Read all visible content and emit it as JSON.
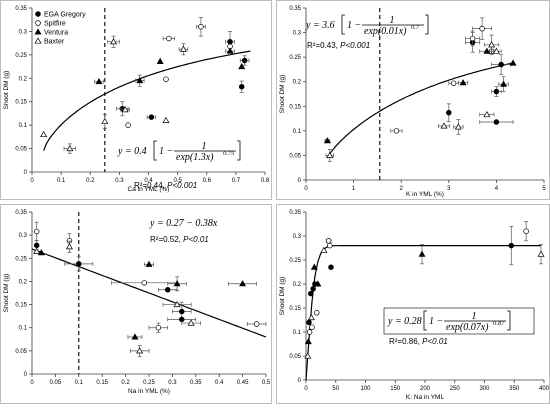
{
  "legend": [
    {
      "name": "EGA Gregory",
      "marker": "circle",
      "fill": "#000000"
    },
    {
      "name": "Spitfire",
      "marker": "circle",
      "fill": "#ffffff"
    },
    {
      "name": "Ventura",
      "marker": "triangle",
      "fill": "#000000"
    },
    {
      "name": "Baxter",
      "marker": "triangle",
      "fill": "#ffffff"
    }
  ],
  "chart_data": [
    {
      "type": "scatter",
      "xlabel": "Ca in YML (%)",
      "ylabel": "Shoot DM (g)",
      "xlim": [
        0,
        0.8
      ],
      "ylim": [
        0,
        0.35
      ],
      "xticks": [
        "0",
        "0.1",
        "0.2",
        "0.3",
        "0.4",
        "0.5",
        "0.6",
        "0.7",
        "0.8"
      ],
      "yticks": [
        "0",
        "0.05",
        "0.1",
        "0.15",
        "0.2",
        "0.25",
        "0.3",
        "0.35"
      ],
      "reference_x": 0.25,
      "fit": {
        "model": "sigmoid",
        "a": 0.4,
        "b": 1.3,
        "c": 0.75,
        "x_range": [
          0.04,
          0.75
        ]
      },
      "equation": {
        "lhs": "y = 0.4",
        "num": "1",
        "den": "exp(1.3x)",
        "exp": "0.75"
      },
      "r2_label": "R²=0.44, ",
      "p_label": "P<0.001",
      "series": [
        {
          "name": "EGA Gregory",
          "points": [
            [
              0.31,
              0.135,
              0.02,
              0.015
            ],
            [
              0.41,
              0.117,
              0.015,
              0
            ],
            [
              0.68,
              0.278,
              0.015,
              0.022
            ],
            [
              0.72,
              0.182,
              0,
              0.012
            ],
            [
              0.73,
              0.238,
              0.015,
              0.01
            ]
          ]
        },
        {
          "name": "Spitfire",
          "points": [
            [
              0.33,
              0.1,
              0,
              0
            ],
            [
              0.46,
              0.198,
              0,
              0
            ],
            [
              0.47,
              0.285,
              0.02,
              0
            ],
            [
              0.58,
              0.31,
              0.015,
              0.02
            ],
            [
              0.68,
              0.268,
              0,
              0
            ]
          ]
        },
        {
          "name": "Ventura",
          "points": [
            [
              0.23,
              0.193,
              0.015,
              0
            ],
            [
              0.37,
              0.195,
              0.015,
              0.012
            ],
            [
              0.44,
              0.236,
              0,
              0
            ],
            [
              0.72,
              0.225,
              0,
              0
            ],
            [
              0.68,
              0.258,
              0.015,
              0
            ]
          ]
        },
        {
          "name": "Baxter",
          "points": [
            [
              0.04,
              0.08,
              0,
              0
            ],
            [
              0.13,
              0.05,
              0.02,
              0.01
            ],
            [
              0.28,
              0.278,
              0.02,
              0.012
            ],
            [
              0.32,
              0.133,
              0.015,
              0
            ],
            [
              0.46,
              0.11,
              0,
              0
            ],
            [
              0.52,
              0.262,
              0.015,
              0.012
            ],
            [
              0.25,
              0.108,
              0,
              0.015
            ]
          ]
        }
      ]
    },
    {
      "type": "scatter",
      "xlabel": "K in YML (%)",
      "ylabel": "Shoot DM (g)",
      "xlim": [
        0,
        5
      ],
      "ylim": [
        0,
        0.35
      ],
      "xticks": [
        "0",
        "1",
        "2",
        "3",
        "4",
        "5"
      ],
      "yticks": [
        "0",
        "0.05",
        "0.1",
        "0.15",
        "0.2",
        "0.25",
        "0.3",
        "0.35"
      ],
      "reference_x": 1.55,
      "fit": {
        "model": "sigmoid",
        "a": 3.6,
        "b": 0.01,
        "c": 0.7,
        "x_range": [
          0.45,
          4.35
        ]
      },
      "equation": {
        "lhs": "y = 3.6",
        "num": "1",
        "den": "exp(0.01x)",
        "exp": "0.7"
      },
      "r2_label": "R²=0.43, ",
      "p_label": "P<0.001",
      "series": [
        {
          "name": "EGA Gregory",
          "points": [
            [
              3.0,
              0.137,
              0,
              0.018
            ],
            [
              3.5,
              0.28,
              0.15,
              0.02
            ],
            [
              4.0,
              0.118,
              0.35,
              0
            ],
            [
              4.0,
              0.18,
              0.1,
              0.01
            ],
            [
              4.1,
              0.235,
              0.2,
              0.02
            ]
          ]
        },
        {
          "name": "Spitfire",
          "points": [
            [
              1.9,
              0.1,
              0.12,
              0
            ],
            [
              3.1,
              0.197,
              0.1,
              0
            ],
            [
              3.5,
              0.288,
              0.15,
              0.015
            ],
            [
              3.7,
              0.308,
              0.2,
              0.022
            ],
            [
              3.9,
              0.262,
              0.1,
              0
            ]
          ]
        },
        {
          "name": "Ventura",
          "points": [
            [
              0.45,
              0.08,
              0.05,
              0
            ],
            [
              3.3,
              0.198,
              0.1,
              0
            ],
            [
              3.8,
              0.262,
              0.15,
              0
            ],
            [
              4.15,
              0.195,
              0.1,
              0.015
            ],
            [
              4.35,
              0.238,
              0,
              0
            ]
          ]
        },
        {
          "name": "Baxter",
          "points": [
            [
              0.5,
              0.05,
              0.08,
              0.012
            ],
            [
              2.9,
              0.11,
              0.12,
              0
            ],
            [
              3.2,
              0.108,
              0.1,
              0.015
            ],
            [
              3.8,
              0.133,
              0.15,
              0
            ],
            [
              3.9,
              0.275,
              0.15,
              0.02
            ],
            [
              4.0,
              0.262,
              0.1,
              0
            ]
          ]
        }
      ]
    },
    {
      "type": "scatter",
      "xlabel": "Na in YML (%)",
      "ylabel": "Shoot DM (g)",
      "xlim": [
        0,
        0.5
      ],
      "ylim": [
        0,
        0.35
      ],
      "xticks": [
        "0",
        "0.05",
        "0.1",
        "0.15",
        "0.2",
        "0.25",
        "0.3",
        "0.35",
        "0.4",
        "0.45",
        "0.5"
      ],
      "yticks": [
        "0",
        "0.05",
        "0.1",
        "0.15",
        "0.2",
        "0.25",
        "0.3",
        "0.35"
      ],
      "reference_x": 0.1,
      "fit": {
        "model": "linear",
        "a": 0.27,
        "b": -0.38,
        "x_range": [
          0,
          0.5
        ]
      },
      "equation": {
        "text": "y = 0.27 − 0.38x"
      },
      "r2_label": "R²=0.52, ",
      "p_label": "P<0.01",
      "series": [
        {
          "name": "EGA Gregory",
          "points": [
            [
              0.01,
              0.278,
              0,
              0.01
            ],
            [
              0.1,
              0.238,
              0.03,
              0.015
            ],
            [
              0.29,
              0.182,
              0.02,
              0
            ],
            [
              0.32,
              0.135,
              0.02,
              0.02
            ],
            [
              0.32,
              0.118,
              0.03,
              0
            ]
          ]
        },
        {
          "name": "Spitfire",
          "points": [
            [
              0.01,
              0.308,
              0,
              0.02
            ],
            [
              0.08,
              0.288,
              0,
              0.015
            ],
            [
              0.24,
              0.197,
              0.07,
              0
            ],
            [
              0.27,
              0.1,
              0.02,
              0.01
            ],
            [
              0.48,
              0.108,
              0.02,
              0
            ]
          ]
        },
        {
          "name": "Ventura",
          "points": [
            [
              0.02,
              0.262,
              0,
              0
            ],
            [
              0.25,
              0.237,
              0.01,
              0
            ],
            [
              0.31,
              0.195,
              0.02,
              0.015
            ],
            [
              0.22,
              0.08,
              0.015,
              0
            ],
            [
              0.45,
              0.195,
              0.03,
              0
            ]
          ]
        },
        {
          "name": "Baxter",
          "points": [
            [
              0.01,
              0.265,
              0,
              0
            ],
            [
              0.08,
              0.275,
              0,
              0.012
            ],
            [
              0.23,
              0.05,
              0.02,
              0.012
            ],
            [
              0.31,
              0.15,
              0.03,
              0
            ],
            [
              0.34,
              0.11,
              0.02,
              0
            ]
          ]
        }
      ]
    },
    {
      "type": "scatter",
      "xlabel": "K: Na in YML",
      "ylabel": "Shoot DM (g)",
      "xlim": [
        0,
        400
      ],
      "ylim": [
        0,
        0.35
      ],
      "xticks": [
        "0",
        "50",
        "100",
        "150",
        "200",
        "250",
        "300",
        "350",
        "400"
      ],
      "yticks": [
        "0",
        "0.05",
        "0.1",
        "0.15",
        "0.2",
        "0.25",
        "0.3",
        "0.35"
      ],
      "fit": {
        "model": "sigmoid",
        "a": 0.28,
        "b": 0.07,
        "c": 0.87,
        "x_range": [
          0,
          395
        ]
      },
      "equation": {
        "lhs": "y = 0.28",
        "num": "1",
        "den": "exp(0.07x)",
        "exp": "0.87"
      },
      "r2_label": "R²=0.86, ",
      "p_label": "P<0.01",
      "series": [
        {
          "name": "EGA Gregory",
          "points": [
            [
              5,
              0.12,
              0,
              0
            ],
            [
              8,
              0.18,
              0,
              0
            ],
            [
              12,
              0.19,
              2,
              0
            ],
            [
              15,
              0.2,
              0,
              0
            ],
            [
              42,
              0.235,
              3,
              0
            ],
            [
              345,
              0.28,
              0,
              0.04
            ]
          ]
        },
        {
          "name": "Spitfire",
          "points": [
            [
              6,
              0.1,
              0,
              0
            ],
            [
              10,
              0.11,
              0,
              0
            ],
            [
              18,
              0.14,
              0,
              0
            ],
            [
              38,
              0.29,
              4,
              0
            ],
            [
              40,
              0.28,
              0,
              0
            ],
            [
              370,
              0.31,
              0,
              0.02
            ]
          ]
        },
        {
          "name": "Ventura",
          "points": [
            [
              4,
              0.08,
              0,
              0
            ],
            [
              14,
              0.235,
              0,
              0
            ],
            [
              20,
              0.2,
              0,
              0
            ],
            [
              195,
              0.262,
              0,
              0.02
            ]
          ]
        },
        {
          "name": "Baxter",
          "points": [
            [
              3,
              0.05,
              0,
              0
            ],
            [
              9,
              0.13,
              0,
              0
            ],
            [
              30,
              0.27,
              0,
              0
            ],
            [
              395,
              0.262,
              0,
              0.02
            ]
          ]
        }
      ]
    }
  ]
}
